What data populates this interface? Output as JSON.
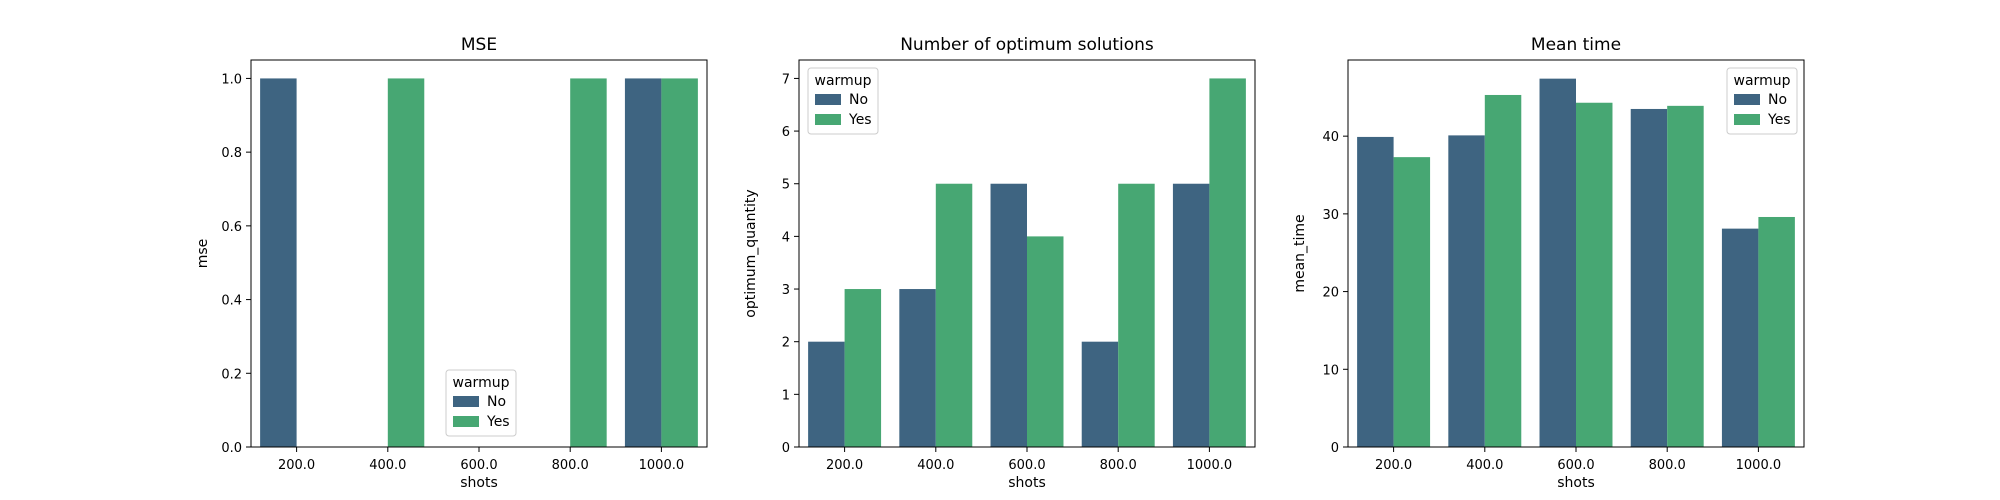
{
  "colors": {
    "no": "#3e6481",
    "yes": "#47a773"
  },
  "chart_data": [
    {
      "type": "bar",
      "title": "MSE",
      "xlabel": "shots",
      "ylabel": "mse",
      "categories": [
        "200.0",
        "400.0",
        "600.0",
        "800.0",
        "1000.0"
      ],
      "ylim": [
        0,
        1.05
      ],
      "yticks": [
        0.0,
        0.2,
        0.4,
        0.6,
        0.8,
        1.0
      ],
      "ytick_labels": [
        "0.0",
        "0.2",
        "0.4",
        "0.6",
        "0.8",
        "1.0"
      ],
      "legend_title": "warmup",
      "legend_position": "lower-center",
      "series": [
        {
          "name": "No",
          "values": [
            1,
            null,
            null,
            null,
            1
          ]
        },
        {
          "name": "Yes",
          "values": [
            null,
            1,
            null,
            1,
            1
          ]
        }
      ]
    },
    {
      "type": "bar",
      "title": "Number of optimum solutions",
      "xlabel": "shots",
      "ylabel": "optimum_quantity",
      "categories": [
        "200.0",
        "400.0",
        "600.0",
        "800.0",
        "1000.0"
      ],
      "ylim": [
        0,
        7.35
      ],
      "yticks": [
        0,
        1,
        2,
        3,
        4,
        5,
        6,
        7
      ],
      "ytick_labels": [
        "0",
        "1",
        "2",
        "3",
        "4",
        "5",
        "6",
        "7"
      ],
      "legend_title": "warmup",
      "legend_position": "top-left",
      "series": [
        {
          "name": "No",
          "values": [
            2,
            3,
            5,
            2,
            5
          ]
        },
        {
          "name": "Yes",
          "values": [
            3,
            5,
            4,
            5,
            7
          ]
        }
      ]
    },
    {
      "type": "bar",
      "title": "Mean time",
      "xlabel": "shots",
      "ylabel": "mean_time",
      "categories": [
        "200.0",
        "400.0",
        "600.0",
        "800.0",
        "1000.0"
      ],
      "ylim": [
        0,
        49.8
      ],
      "yticks": [
        0,
        10,
        20,
        30,
        40
      ],
      "ytick_labels": [
        "0",
        "10",
        "20",
        "30",
        "40"
      ],
      "legend_title": "warmup",
      "legend_position": "top-right",
      "series": [
        {
          "name": "No",
          "values": [
            39.9,
            40.1,
            47.4,
            43.5,
            28.1
          ]
        },
        {
          "name": "Yes",
          "values": [
            37.3,
            45.3,
            44.3,
            43.9,
            29.6
          ]
        }
      ]
    }
  ]
}
